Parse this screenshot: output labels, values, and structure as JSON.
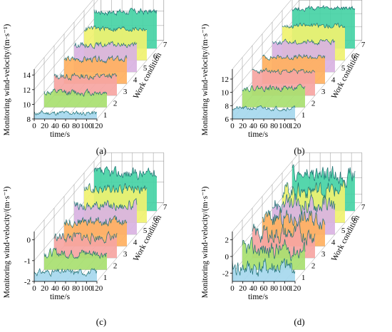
{
  "figure": {
    "captions": [
      "(a)",
      "(b)",
      "(c)",
      "(d)"
    ]
  },
  "chart_data": [
    {
      "type": "area",
      "panel": "(a)",
      "xlabel": "time/s",
      "ylabel": "Monitoring wind-velocity/(m·s⁻¹)",
      "zlabel": "Work condition",
      "x_ticks": [
        "0",
        "20",
        "40",
        "60",
        "80",
        "100",
        "120"
      ],
      "y_ticks": [
        "8",
        "10",
        "12",
        "14"
      ],
      "z_ticks": [
        "1",
        "2",
        "3",
        "4",
        "5",
        "6",
        "7"
      ],
      "xlim": [
        0,
        120
      ],
      "ylim": [
        8,
        14.8
      ],
      "grid": true,
      "series": [
        {
          "name": "1",
          "base": 8.8,
          "amp": 0.25,
          "seed": 11
        },
        {
          "name": "2",
          "base": 10.0,
          "amp": 0.35,
          "seed": 12
        },
        {
          "name": "3",
          "base": 10.6,
          "amp": 0.35,
          "seed": 13
        },
        {
          "name": "4",
          "base": 11.3,
          "amp": 0.35,
          "seed": 14
        },
        {
          "name": "5",
          "base": 11.7,
          "amp": 0.3,
          "seed": 15
        },
        {
          "name": "6",
          "base": 12.3,
          "amp": 0.3,
          "seed": 16
        },
        {
          "name": "7",
          "base": 13.0,
          "amp": 0.35,
          "seed": 17
        }
      ]
    },
    {
      "type": "area",
      "panel": "(b)",
      "xlabel": "time/s",
      "ylabel": "Monitoring wind-velocity/(m·s⁻¹)",
      "zlabel": "Work condition",
      "x_ticks": [
        "0",
        "20",
        "40",
        "60",
        "80",
        "100",
        "120"
      ],
      "y_ticks": [
        "6",
        "8",
        "10",
        "12"
      ],
      "z_ticks": [
        "1",
        "2",
        "3",
        "4",
        "5",
        "6",
        "7"
      ],
      "xlim": [
        0,
        120
      ],
      "ylim": [
        6,
        13.5
      ],
      "grid": true,
      "series": [
        {
          "name": "1",
          "base": 7.6,
          "amp": 0.25,
          "seed": 21
        },
        {
          "name": "2",
          "base": 8.9,
          "amp": 0.35,
          "seed": 22
        },
        {
          "name": "3",
          "base": 9.6,
          "amp": 0.3,
          "seed": 23
        },
        {
          "name": "4",
          "base": 10.0,
          "amp": 0.3,
          "seed": 24
        },
        {
          "name": "5",
          "base": 10.5,
          "amp": 0.3,
          "seed": 25
        },
        {
          "name": "6",
          "base": 11.2,
          "amp": 0.3,
          "seed": 26
        },
        {
          "name": "7",
          "base": 12.0,
          "amp": 0.3,
          "seed": 27
        }
      ]
    },
    {
      "type": "area",
      "panel": "(c)",
      "xlabel": "time/s",
      "ylabel": "Monitoring wind-velocity/(m·s⁻¹)",
      "zlabel": "Work condition",
      "x_ticks": [
        "0",
        "20",
        "40",
        "60",
        "80",
        "100",
        "120"
      ],
      "y_ticks": [
        "-2",
        "-1",
        "0"
      ],
      "z_ticks": [
        "1",
        "2",
        "3",
        "4",
        "5",
        "6",
        "7"
      ],
      "xlim": [
        0,
        120
      ],
      "ylim": [
        -2,
        0.4
      ],
      "grid": true,
      "series": [
        {
          "name": "1",
          "base": -1.55,
          "amp": 0.12,
          "seed": 31
        },
        {
          "name": "2",
          "base": -1.2,
          "amp": 0.18,
          "seed": 32
        },
        {
          "name": "3",
          "base": -1.0,
          "amp": 0.2,
          "seed": 33
        },
        {
          "name": "4",
          "base": -0.8,
          "amp": 0.2,
          "seed": 34
        },
        {
          "name": "5",
          "base": -0.6,
          "amp": 0.2,
          "seed": 35
        },
        {
          "name": "6",
          "base": -0.4,
          "amp": 0.2,
          "seed": 36
        },
        {
          "name": "7",
          "base": -0.2,
          "amp": 0.22,
          "seed": 37
        }
      ]
    },
    {
      "type": "area",
      "panel": "(d)",
      "xlabel": "time/s",
      "ylabel": "Monitoring wind-velocity/(m·s⁻¹)",
      "zlabel": "Work condition",
      "x_ticks": [
        "0",
        "20",
        "40",
        "60",
        "80",
        "100",
        "120"
      ],
      "y_ticks": [
        "-2",
        "0",
        "2"
      ],
      "z_ticks": [
        "1",
        "2",
        "3",
        "4",
        "5",
        "6",
        "7"
      ],
      "xlim": [
        0,
        120
      ],
      "ylim": [
        -3,
        3
      ],
      "grid": true,
      "series": [
        {
          "name": "1",
          "base": -1.4,
          "amp": 0.9,
          "seed": 41
        },
        {
          "name": "2",
          "base": -0.6,
          "amp": 0.9,
          "seed": 42
        },
        {
          "name": "3",
          "base": -0.1,
          "amp": 0.9,
          "seed": 43
        },
        {
          "name": "4",
          "base": 0.4,
          "amp": 0.9,
          "seed": 44
        },
        {
          "name": "5",
          "base": 0.6,
          "amp": 0.9,
          "seed": 45
        },
        {
          "name": "6",
          "base": 0.9,
          "amp": 0.85,
          "seed": 46
        },
        {
          "name": "7",
          "base": 1.3,
          "amp": 0.85,
          "seed": 47
        }
      ]
    }
  ],
  "colors": {
    "fills": [
      "#a6d8ee",
      "#a8e070",
      "#f6a5a2",
      "#ffb060",
      "#d9b3e2",
      "#f0f270",
      "#46d3a5"
    ],
    "stroke": "#1d6f72",
    "grid": "#888888"
  }
}
